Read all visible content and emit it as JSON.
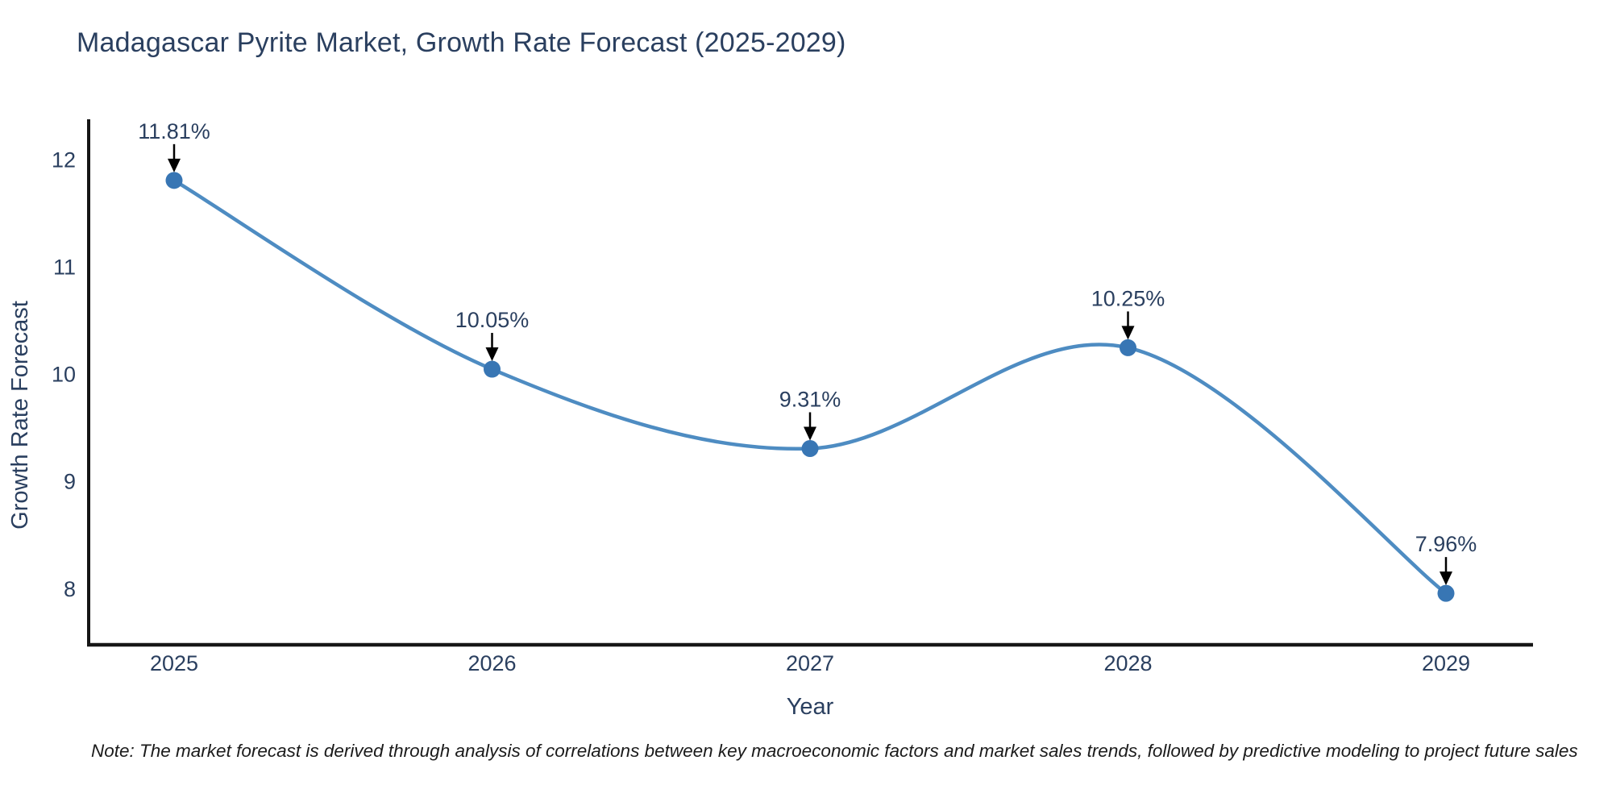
{
  "title": "Madagascar Pyrite Market, Growth Rate Forecast (2025-2029)",
  "note": "Note: The market forecast is derived through analysis of correlations between key macroeconomic factors and market sales trends, followed by predictive modeling to project future sales",
  "colors": {
    "text": "#2a3f5f",
    "line": "#4e8cc2",
    "marker": "#3876b4",
    "axis": "#161616",
    "arrow": "#000000",
    "background": "#ffffff"
  },
  "chart_data": {
    "type": "line",
    "line_shape": "spline",
    "markers": true,
    "grid": false,
    "legend": false,
    "title": "Madagascar Pyrite Market, Growth Rate Forecast (2025-2029)",
    "xlabel": "Year",
    "ylabel": "Growth Rate Forecast",
    "categories": [
      "2025",
      "2026",
      "2027",
      "2028",
      "2029"
    ],
    "values": [
      11.81,
      10.05,
      9.31,
      10.25,
      7.96
    ],
    "point_labels": [
      "11.81%",
      "10.05%",
      "9.31%",
      "10.25%",
      "7.96%"
    ],
    "yticks": [
      8,
      9,
      10,
      11,
      12
    ],
    "ylim": [
      7.48,
      12.38
    ]
  }
}
